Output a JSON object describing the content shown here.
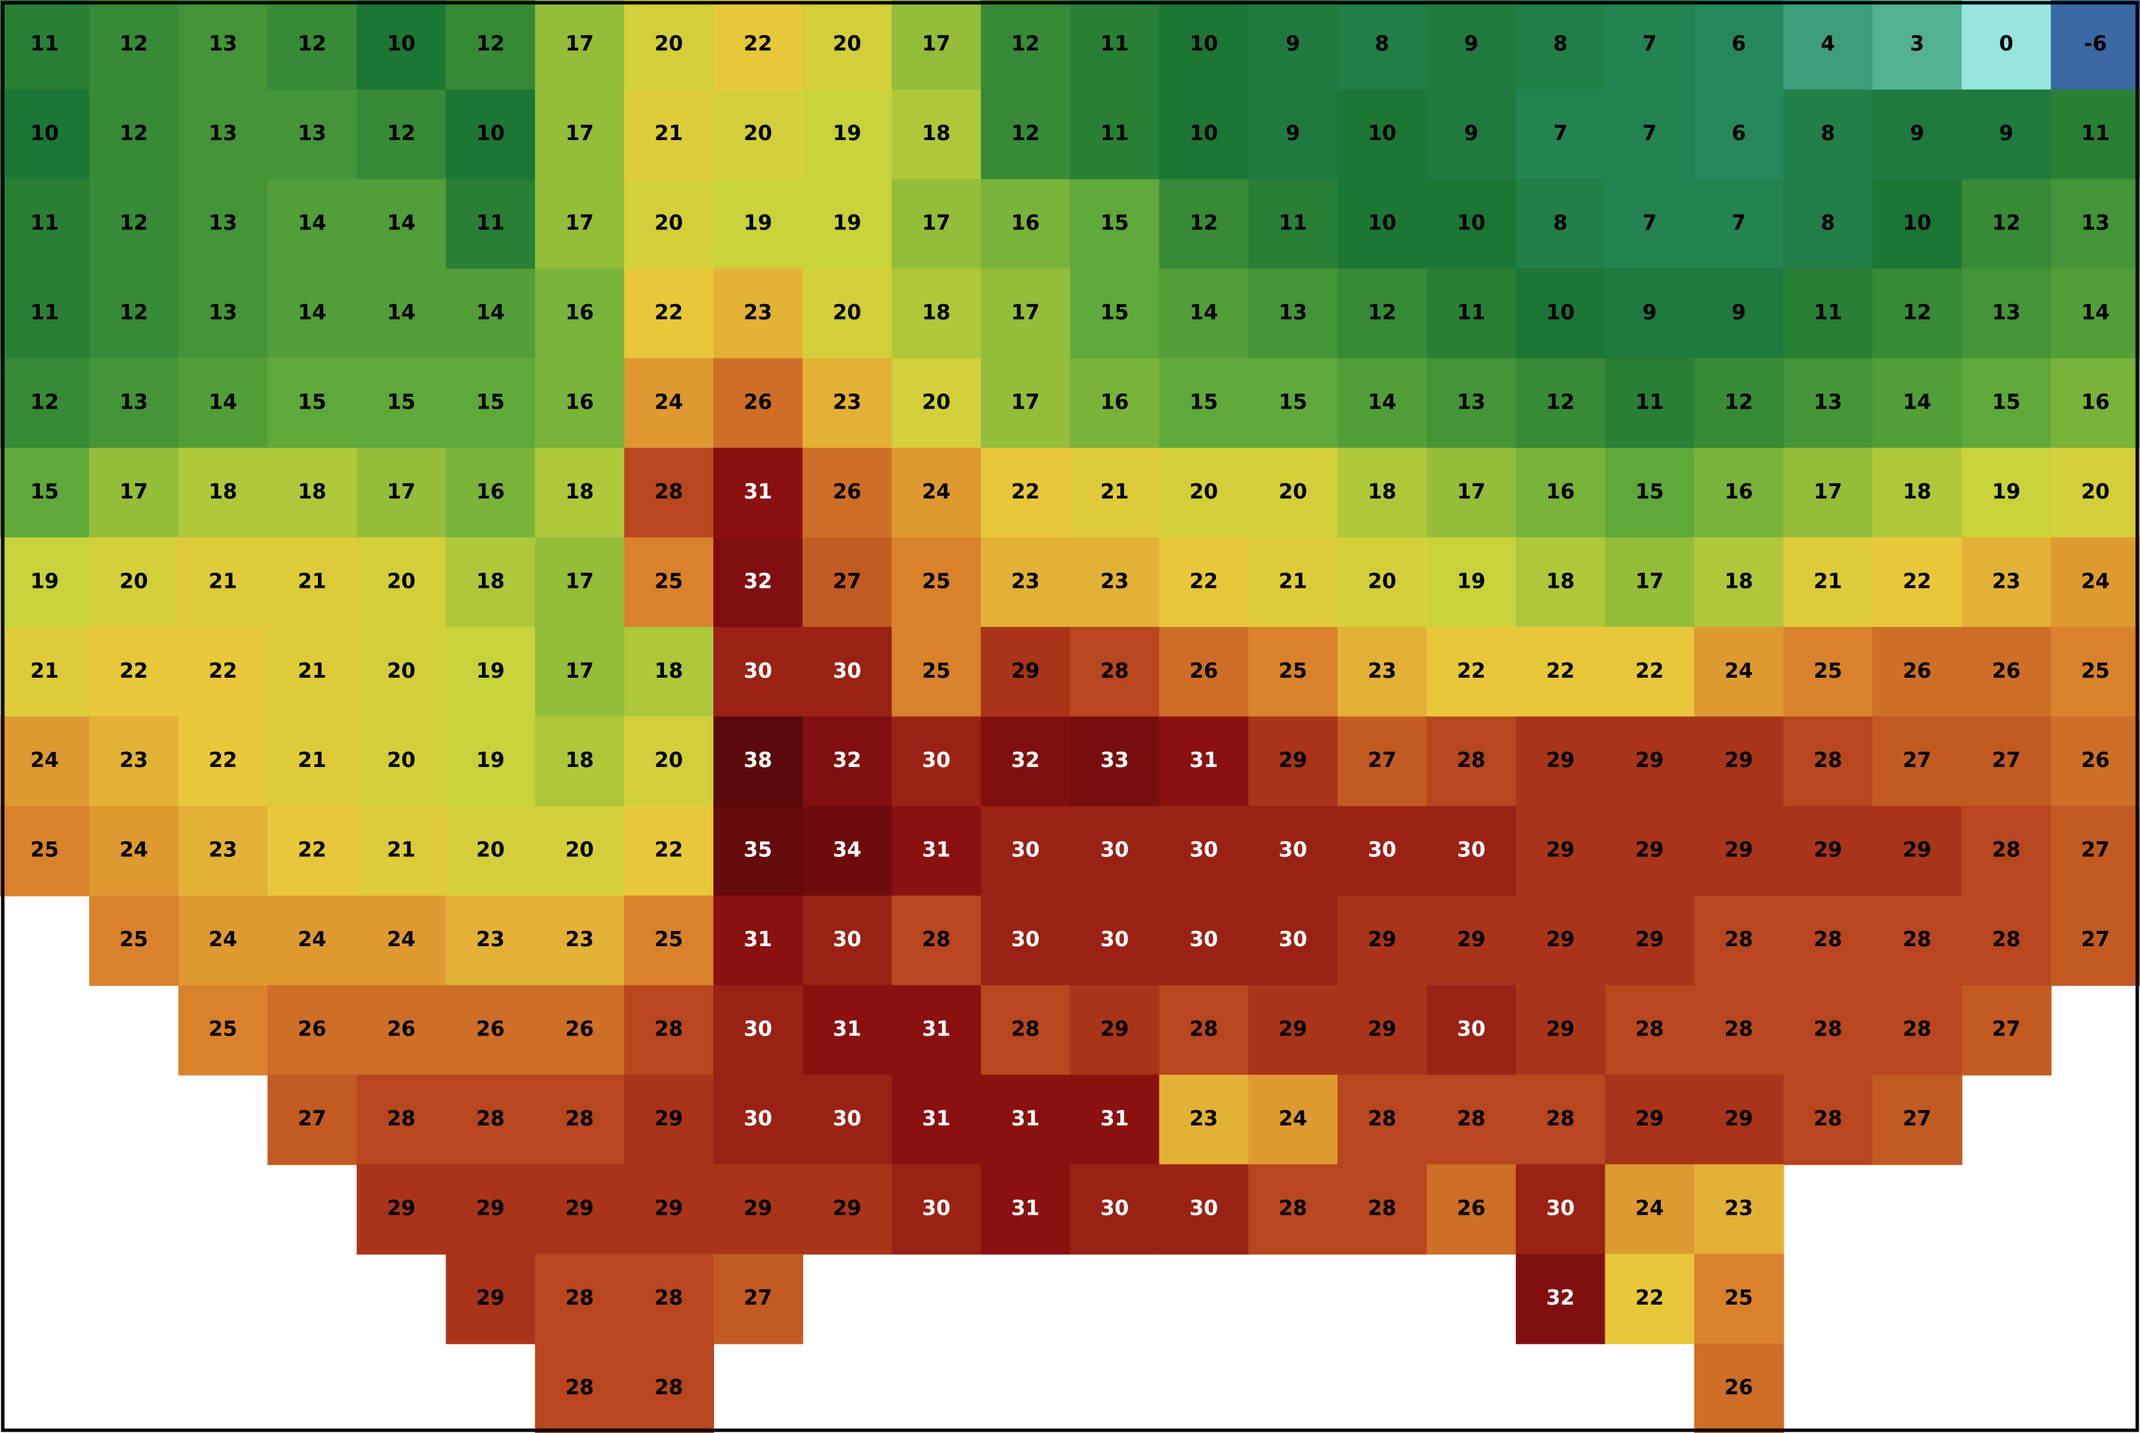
{
  "temperature_grid": {
    "rows": [
      [
        11,
        12,
        13,
        12,
        10,
        12,
        17,
        20,
        22,
        20,
        17,
        12,
        11,
        10,
        9,
        8,
        9,
        8,
        7,
        6,
        4,
        3,
        0,
        -6
      ],
      [
        10,
        12,
        13,
        13,
        12,
        10,
        17,
        21,
        20,
        19,
        18,
        12,
        11,
        10,
        9,
        10,
        9,
        7,
        7,
        6,
        8,
        9,
        9,
        11
      ],
      [
        11,
        12,
        13,
        14,
        14,
        11,
        17,
        20,
        19,
        19,
        17,
        16,
        15,
        12,
        11,
        10,
        10,
        8,
        7,
        7,
        8,
        10,
        12,
        13
      ],
      [
        11,
        12,
        13,
        14,
        14,
        14,
        16,
        22,
        23,
        20,
        18,
        17,
        15,
        14,
        13,
        12,
        11,
        10,
        9,
        9,
        11,
        12,
        13,
        14
      ],
      [
        12,
        13,
        14,
        15,
        15,
        15,
        16,
        24,
        26,
        23,
        20,
        17,
        16,
        15,
        15,
        14,
        13,
        12,
        11,
        12,
        13,
        14,
        15,
        16
      ],
      [
        15,
        17,
        18,
        18,
        17,
        16,
        18,
        28,
        31,
        26,
        24,
        22,
        21,
        20,
        20,
        18,
        17,
        16,
        15,
        16,
        17,
        18,
        19,
        20
      ],
      [
        19,
        20,
        21,
        21,
        20,
        18,
        17,
        25,
        32,
        27,
        25,
        23,
        23,
        22,
        21,
        20,
        19,
        18,
        17,
        18,
        21,
        22,
        23,
        24
      ],
      [
        21,
        22,
        22,
        21,
        20,
        19,
        17,
        18,
        30,
        30,
        25,
        29,
        28,
        26,
        25,
        23,
        22,
        22,
        22,
        24,
        25,
        26,
        26,
        25
      ],
      [
        24,
        23,
        22,
        21,
        20,
        19,
        18,
        20,
        38,
        32,
        30,
        32,
        33,
        31,
        29,
        27,
        28,
        29,
        29,
        29,
        28,
        27,
        27,
        26
      ],
      [
        25,
        24,
        23,
        22,
        21,
        20,
        20,
        22,
        35,
        34,
        31,
        30,
        30,
        30,
        30,
        30,
        30,
        29,
        29,
        29,
        29,
        29,
        28,
        27
      ],
      [
        null,
        25,
        24,
        24,
        24,
        23,
        23,
        25,
        31,
        30,
        28,
        30,
        30,
        30,
        30,
        29,
        29,
        29,
        29,
        28,
        28,
        28,
        28,
        27
      ],
      [
        null,
        null,
        25,
        26,
        26,
        26,
        26,
        28,
        30,
        31,
        31,
        28,
        29,
        28,
        29,
        29,
        30,
        29,
        28,
        28,
        28,
        28,
        27,
        null
      ],
      [
        null,
        null,
        null,
        27,
        28,
        28,
        28,
        29,
        30,
        30,
        31,
        31,
        31,
        23,
        24,
        28,
        28,
        28,
        29,
        29,
        28,
        27,
        null,
        null
      ],
      [
        null,
        null,
        null,
        null,
        29,
        29,
        29,
        29,
        29,
        29,
        30,
        31,
        30,
        30,
        28,
        28,
        26,
        30,
        24,
        23,
        null,
        null,
        null,
        null
      ],
      [
        null,
        null,
        null,
        null,
        null,
        29,
        28,
        28,
        27,
        null,
        null,
        null,
        null,
        null,
        null,
        null,
        null,
        32,
        22,
        25,
        null,
        null,
        null,
        null
      ],
      [
        null,
        null,
        null,
        null,
        null,
        null,
        28,
        28,
        null,
        null,
        null,
        null,
        null,
        null,
        null,
        null,
        null,
        null,
        null,
        26,
        null,
        null,
        null,
        null
      ]
    ]
  }
}
